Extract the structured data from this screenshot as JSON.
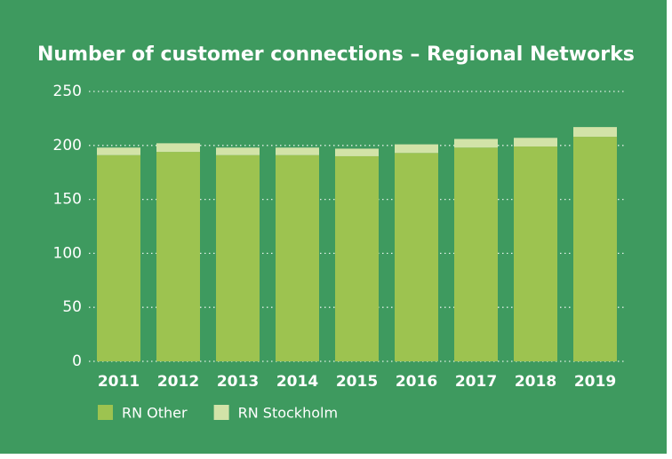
{
  "chart_data": {
    "type": "stacked_bar",
    "title": "Number of customer connections – Regional Networks",
    "categories": [
      "2011",
      "2012",
      "2013",
      "2014",
      "2015",
      "2016",
      "2017",
      "2018",
      "2019"
    ],
    "series": [
      {
        "name": "RN Other",
        "color": "#9dc350",
        "values": [
          191,
          194,
          191,
          191,
          190,
          193,
          198,
          199,
          208
        ]
      },
      {
        "name": "RN Stockholm",
        "color": "#d2e3a8",
        "values": [
          7,
          8,
          7,
          7,
          7,
          8,
          8,
          8,
          9
        ]
      }
    ],
    "ylim": [
      0,
      250
    ],
    "yticks": [
      0,
      50,
      100,
      150,
      200,
      250
    ],
    "grid": true,
    "legend": "bottom-left"
  }
}
